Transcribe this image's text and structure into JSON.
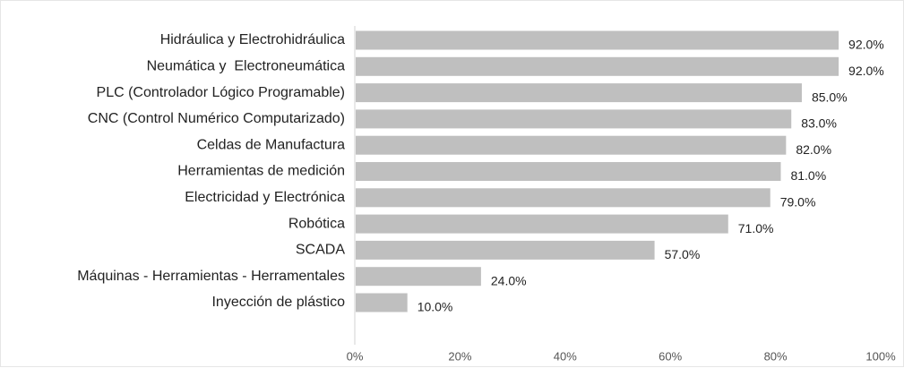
{
  "chart_data": {
    "type": "bar",
    "orientation": "horizontal",
    "categories": [
      "Hidráulica y Electrohidráulica",
      "Neumática y  Electroneumática",
      "PLC (Controlador Lógico Programable)",
      "CNC (Control Numérico Computarizado)",
      "Celdas de Manufactura",
      "Herramientas de medición",
      "Electricidad y Electrónica",
      "Robótica",
      "SCADA",
      "Máquinas - Herramientas - Herramentales",
      "Inyección de plástico"
    ],
    "values": [
      92,
      92,
      85,
      83,
      82,
      81,
      79,
      71,
      57,
      24,
      10
    ],
    "data_labels": [
      "92.0%",
      "92.0%",
      "85.0%",
      "83.0%",
      "82.0%",
      "81.0%",
      "79.0%",
      "71.0%",
      "57.0%",
      "24.0%",
      "10.0%"
    ],
    "xlim": [
      0,
      100
    ],
    "xticks": [
      0,
      20,
      40,
      60,
      80,
      100
    ],
    "xtick_labels": [
      "0%",
      "20%",
      "40%",
      "60%",
      "80%",
      "100%"
    ],
    "title": "",
    "xlabel": "",
    "ylabel": "",
    "grid": false,
    "legend": "none",
    "colors": {
      "bar": "#bfbfbf",
      "axis": "#d0d0d0",
      "text": "#222222"
    }
  }
}
